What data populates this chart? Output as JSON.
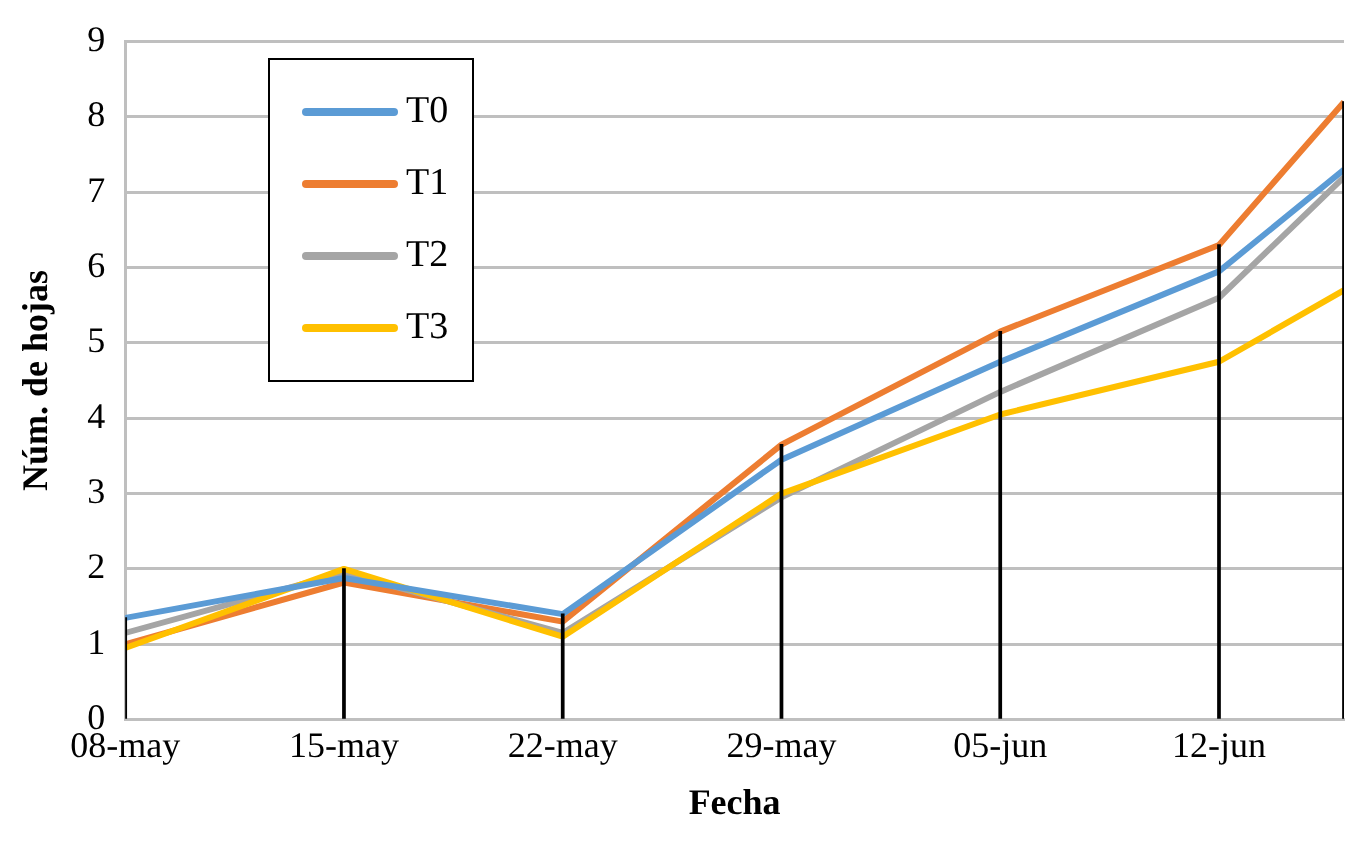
{
  "chart_data": {
    "type": "line",
    "xlabel": "Fecha",
    "ylabel": "Núm. de hojas",
    "x": [
      "--05-08",
      "--05-15",
      "--05-22",
      "--05-29",
      "--06-05",
      "--06-12",
      "--06-16"
    ],
    "xlim": [
      "--05-08",
      "--06-16"
    ],
    "xticks": [
      {
        "value": "--05-08",
        "label": "08-may"
      },
      {
        "value": "--05-15",
        "label": "15-may"
      },
      {
        "value": "--05-22",
        "label": "22-may"
      },
      {
        "value": "--05-29",
        "label": "29-may"
      },
      {
        "value": "--06-05",
        "label": "05-jun"
      },
      {
        "value": "--06-12",
        "label": "12-jun"
      }
    ],
    "ylim": [
      0,
      9
    ],
    "yticks": [
      0,
      1,
      2,
      3,
      4,
      5,
      6,
      7,
      8,
      9
    ],
    "series": [
      {
        "name": "T0",
        "color": "#5b9bd5",
        "values": [
          1.35,
          1.88,
          1.4,
          3.45,
          4.75,
          5.95,
          7.3
        ]
      },
      {
        "name": "T1",
        "color": "#ed7d31",
        "values": [
          1.0,
          1.82,
          1.3,
          3.65,
          5.15,
          6.3,
          8.2
        ]
      },
      {
        "name": "T2",
        "color": "#a5a5a5",
        "values": [
          1.15,
          1.95,
          1.15,
          2.95,
          4.35,
          5.6,
          7.2
        ]
      },
      {
        "name": "T3",
        "color": "#ffc000",
        "values": [
          0.95,
          2.0,
          1.1,
          3.0,
          4.05,
          4.75,
          5.7
        ]
      },
      {
        "type": "bar",
        "color": "#000000",
        "values": [
          1.35,
          2.0,
          1.4,
          3.65,
          5.15,
          6.3,
          8.2
        ]
      }
    ],
    "grid": "y",
    "legend": "top left",
    "marker": "none",
    "line_style": "solid"
  }
}
